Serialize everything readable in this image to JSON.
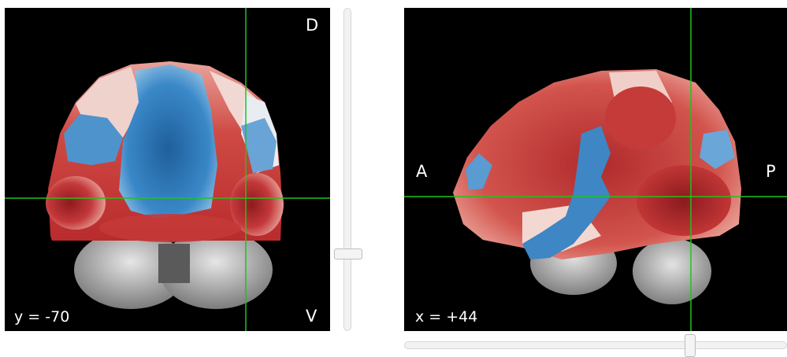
{
  "coronal_view": {
    "slice_label": "y = -70",
    "orientation_top": "D",
    "orientation_bottom": "V"
  },
  "sagittal_view": {
    "slice_label": "x = +44",
    "orientation_left": "A",
    "orientation_right": "P"
  },
  "colors": {
    "crosshair": "#1fc21f",
    "positive": "#d23a35",
    "negative": "#2f7cc0",
    "anatomy": "#a9a9a9",
    "background": "#000000"
  },
  "sliders": {
    "coronal_slider_fraction": 0.75,
    "sagittal_slider_fraction": 0.73
  }
}
